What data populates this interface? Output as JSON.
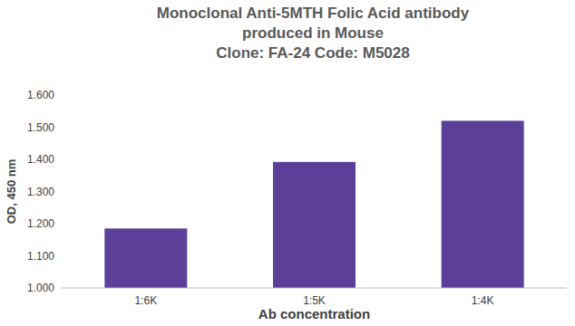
{
  "chart_data": {
    "type": "bar",
    "title": "Monoclonal Anti-5MTH Folic Acid antibody produced in Mouse",
    "subtitle": "Clone: FA-24  Code: M5028",
    "x_label": "Ab concentration",
    "y_label": "OD, 450 nm",
    "categories": [
      "1:6K",
      "1:5K",
      "1:4K"
    ],
    "values": [
      1.185,
      1.392,
      1.52
    ],
    "color": "#5b3f98",
    "ylim": [
      1.0,
      1.6
    ],
    "yticks": [
      {
        "value": 1.0,
        "label": "1.000"
      },
      {
        "value": 1.1,
        "label": "1.100"
      },
      {
        "value": 1.2,
        "label": "1.200"
      },
      {
        "value": 1.3,
        "label": "1.300"
      },
      {
        "value": 1.4,
        "label": "1.400"
      },
      {
        "value": 1.5,
        "label": "1.500"
      },
      {
        "value": 1.6,
        "label": "1.600"
      }
    ],
    "grid": false
  }
}
